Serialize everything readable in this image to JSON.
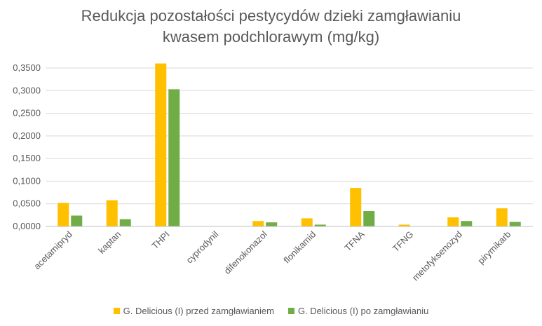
{
  "chart_data": {
    "type": "bar",
    "title_lines": [
      "Redukcja pozostałości pestycydów dzieki zamgławianiu",
      "kwasem podchlorawym (mg/kg)"
    ],
    "categories": [
      "acetamipryd",
      "kaptan",
      "THPI",
      "cyprodynil",
      "difenokonazol",
      "flonikamid",
      "TFNA",
      "TFNG",
      "metofyksenozyd",
      "pirymikarb"
    ],
    "series": [
      {
        "name": "G. Delicious (I) przed zamgławianiem",
        "color": "#FFC000",
        "values": [
          0.052,
          0.058,
          0.36,
          0.0,
          0.012,
          0.018,
          0.085,
          0.004,
          0.02,
          0.04
        ]
      },
      {
        "name": "G. Delicious (I) po zamgławianiu",
        "color": "#70AD47",
        "values": [
          0.024,
          0.016,
          0.303,
          0.0,
          0.009,
          0.004,
          0.034,
          0.0,
          0.012,
          0.01
        ]
      }
    ],
    "yticks": [
      "0,0000",
      "0,0500",
      "0,1000",
      "0,1500",
      "0,2000",
      "0,2500",
      "0,3000",
      "0,3500"
    ],
    "ylim": [
      0,
      0.35
    ],
    "grid": true,
    "legend_position": "bottom",
    "gridline_color": "#D9D9D9",
    "axis_color": "#BFBFBF"
  }
}
